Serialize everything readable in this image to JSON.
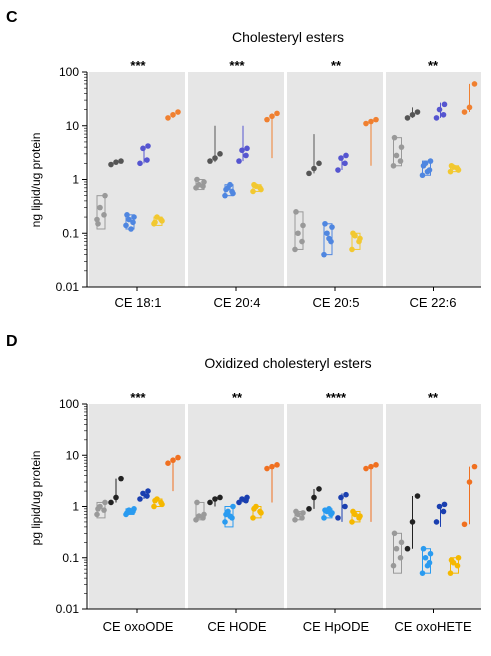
{
  "panels": [
    {
      "letter": "C",
      "chart_data": {
        "type": "scatter",
        "title": "Cholesteryl esters",
        "ylabel": "ng lipid/ug protein",
        "yscale": "log",
        "ylim": [
          0.01,
          100
        ],
        "yticks": [
          "0.01",
          "0.1",
          "1",
          "10",
          "100"
        ],
        "categories": [
          "CE 18:1",
          "CE 20:4",
          "CE 20:5",
          "CE 22:6"
        ],
        "significance": [
          "***",
          "***",
          "**",
          "**"
        ],
        "grid": false,
        "legend": "none",
        "group_colors": [
          "#999999",
          "#555555",
          "#4f86e0",
          "#5555d0",
          "#f2c830",
          "#f08030"
        ],
        "groups": [
          [
            [
              0.18,
              0.22,
              0.3,
              0.5,
              0.15
            ],
            [
              1.9,
              2.1,
              2.2
            ],
            [
              0.14,
              0.16,
              0.18,
              0.2,
              0.22,
              0.12
            ],
            [
              2.0,
              2.3,
              3.8,
              4.2
            ],
            [
              0.15,
              0.18,
              0.2,
              0.17,
              0.16
            ],
            [
              14,
              16,
              18
            ]
          ],
          [
            [
              0.7,
              0.75,
              0.8,
              0.9,
              1.0
            ],
            [
              2.2,
              2.5,
              3.0
            ],
            [
              0.5,
              0.6,
              0.7,
              0.55,
              0.65,
              0.8
            ],
            [
              2.2,
              2.8,
              3.5,
              3.8
            ],
            [
              0.6,
              0.7,
              0.75,
              0.65,
              0.8
            ],
            [
              13,
              15,
              17
            ]
          ],
          [
            [
              0.05,
              0.07,
              0.1,
              0.14,
              0.25
            ],
            [
              1.3,
              1.6,
              2.0
            ],
            [
              0.04,
              0.07,
              0.1,
              0.13,
              0.15,
              0.08
            ],
            [
              1.5,
              2.0,
              2.5,
              2.8
            ],
            [
              0.05,
              0.07,
              0.09,
              0.08,
              0.1
            ],
            [
              11,
              12,
              13
            ]
          ],
          [
            [
              1.8,
              2.2,
              2.8,
              4.0,
              6.0
            ],
            [
              14,
              16,
              18
            ],
            [
              1.2,
              1.5,
              2.0,
              2.2,
              1.8,
              1.4
            ],
            [
              14,
              16,
              20,
              25
            ],
            [
              1.4,
              1.6,
              1.7,
              1.5,
              1.8
            ],
            [
              18,
              22,
              60
            ]
          ]
        ],
        "group_ranges": [
          [
            [
              0.12,
              0.5
            ],
            [
              1.9,
              2.3
            ],
            [
              0.12,
              0.22
            ],
            [
              2.0,
              4.2
            ],
            [
              0.14,
              0.2
            ],
            [
              14,
              18
            ]
          ],
          [
            [
              0.65,
              1.0
            ],
            [
              2.1,
              10
            ],
            [
              0.5,
              0.8
            ],
            [
              2.2,
              10
            ],
            [
              0.6,
              0.8
            ],
            [
              2.5,
              17
            ]
          ],
          [
            [
              0.05,
              0.25
            ],
            [
              1.3,
              7
            ],
            [
              0.04,
              0.15
            ],
            [
              1.5,
              2.8
            ],
            [
              0.05,
              0.1
            ],
            [
              1.8,
              13
            ]
          ],
          [
            [
              1.8,
              6.0
            ],
            [
              14,
              22
            ],
            [
              1.2,
              2.2
            ],
            [
              14,
              27
            ],
            [
              1.4,
              1.8
            ],
            [
              18,
              60
            ]
          ]
        ]
      }
    },
    {
      "letter": "D",
      "chart_data": {
        "type": "scatter",
        "title": "Oxidized cholesteryl esters",
        "ylabel": "pg lipid/ug protein",
        "yscale": "log",
        "ylim": [
          0.01,
          100
        ],
        "yticks": [
          "0.01",
          "0.1",
          "1",
          "10",
          "100"
        ],
        "categories": [
          "CE oxoODE",
          "CE HODE",
          "CE HpODE",
          "CE oxoHETE"
        ],
        "significance": [
          "***",
          "**",
          "****",
          "**"
        ],
        "grid": false,
        "legend": "none",
        "group_colors": [
          "#999999",
          "#222222",
          "#2a9bf0",
          "#1a3fb0",
          "#f5b800",
          "#f07020"
        ],
        "groups": [
          [
            [
              0.7,
              0.85,
              1.0,
              1.2,
              0.9
            ],
            [
              1.2,
              1.5,
              3.5
            ],
            [
              0.7,
              0.8,
              0.85,
              0.9,
              0.75,
              0.8
            ],
            [
              1.4,
              1.6,
              1.8,
              2.0
            ],
            [
              1.0,
              1.2,
              1.4,
              1.1,
              1.3
            ],
            [
              7,
              8,
              9
            ]
          ],
          [
            [
              0.55,
              0.6,
              0.65,
              0.7,
              1.2
            ],
            [
              1.2,
              1.4,
              1.5
            ],
            [
              0.5,
              0.6,
              0.8,
              1.0,
              0.7,
              0.65
            ],
            [
              1.2,
              1.3,
              1.4,
              1.5
            ],
            [
              0.6,
              0.8,
              1.0,
              0.75,
              0.9
            ],
            [
              5.5,
              6.0,
              6.5
            ]
          ],
          [
            [
              0.55,
              0.6,
              0.7,
              0.75,
              0.8
            ],
            [
              0.9,
              1.5,
              2.2
            ],
            [
              0.6,
              0.7,
              0.8,
              0.75,
              0.85,
              0.9
            ],
            [
              0.6,
              1.0,
              1.5,
              1.7
            ],
            [
              0.5,
              0.6,
              0.7,
              0.65,
              0.8
            ],
            [
              5.5,
              6.0,
              6.5
            ]
          ],
          [
            [
              0.07,
              0.1,
              0.15,
              0.2,
              0.3
            ],
            [
              0.15,
              0.5,
              1.6
            ],
            [
              0.05,
              0.08,
              0.1,
              0.12,
              0.15,
              0.07
            ],
            [
              0.5,
              0.8,
              1.0,
              1.1
            ],
            [
              0.05,
              0.07,
              0.08,
              0.1,
              0.09
            ],
            [
              0.45,
              3.0,
              6.0
            ]
          ]
        ],
        "group_ranges": [
          [
            [
              0.6,
              1.2
            ],
            [
              1.2,
              3.5
            ],
            [
              0.7,
              0.9
            ],
            [
              1.4,
              2.0
            ],
            [
              1.0,
              1.4
            ],
            [
              2.0,
              9
            ]
          ],
          [
            [
              0.55,
              1.2
            ],
            [
              1.0,
              1.5
            ],
            [
              0.4,
              1.0
            ],
            [
              1.2,
              1.5
            ],
            [
              0.6,
              1.0
            ],
            [
              1.2,
              6.5
            ]
          ],
          [
            [
              0.55,
              0.8
            ],
            [
              0.9,
              2.2
            ],
            [
              0.6,
              0.9
            ],
            [
              0.5,
              1.8
            ],
            [
              0.5,
              0.8
            ],
            [
              0.5,
              6.5
            ]
          ],
          [
            [
              0.05,
              0.3
            ],
            [
              0.15,
              1.6
            ],
            [
              0.05,
              0.15
            ],
            [
              0.4,
              1.1
            ],
            [
              0.05,
              0.1
            ],
            [
              0.45,
              6.0
            ]
          ]
        ]
      }
    }
  ]
}
